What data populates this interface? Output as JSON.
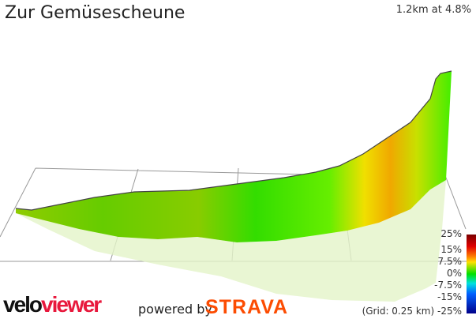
{
  "header": {
    "title": "Zur Gemüsescheune",
    "stat": "1.2km at 4.8%"
  },
  "legend": {
    "labels": [
      "25%",
      "15%",
      "7.5%",
      "0%",
      "-7.5%",
      "-15%",
      "-25%"
    ],
    "grid_note": "(Grid: 0.25 km)"
  },
  "branding": {
    "velo_a": "velo",
    "velo_b": "viewer",
    "powered": "powered by",
    "strava": "STRAVA"
  }
}
